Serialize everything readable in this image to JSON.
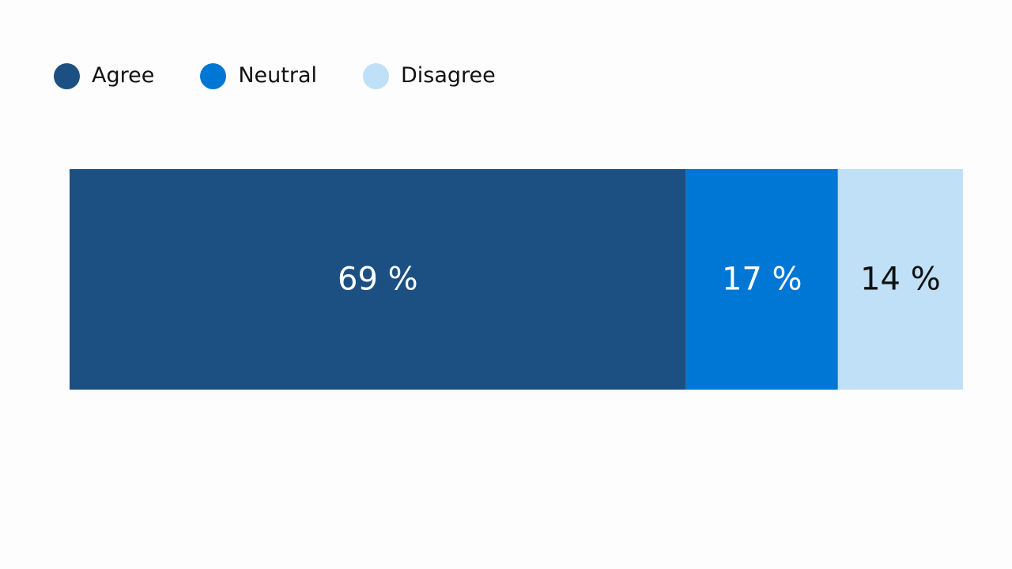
{
  "chart_data": {
    "type": "bar",
    "orientation": "horizontal",
    "stacked": true,
    "normalized": true,
    "title": "",
    "xlabel": "",
    "ylabel": "",
    "xlim": [
      0,
      100
    ],
    "grid": false,
    "legend_position": "top-left",
    "categories": [
      ""
    ],
    "series": [
      {
        "name": "Agree",
        "values": [
          69
        ],
        "label": "69 %",
        "color": "#1c5083",
        "label_color": "#ffffff"
      },
      {
        "name": "Neutral",
        "values": [
          17
        ],
        "label": "17 %",
        "color": "#0077d4",
        "label_color": "#ffffff"
      },
      {
        "name": "Disagree",
        "values": [
          14
        ],
        "label": "14 %",
        "color": "#bfe0f6",
        "label_color": "#111111"
      }
    ]
  }
}
